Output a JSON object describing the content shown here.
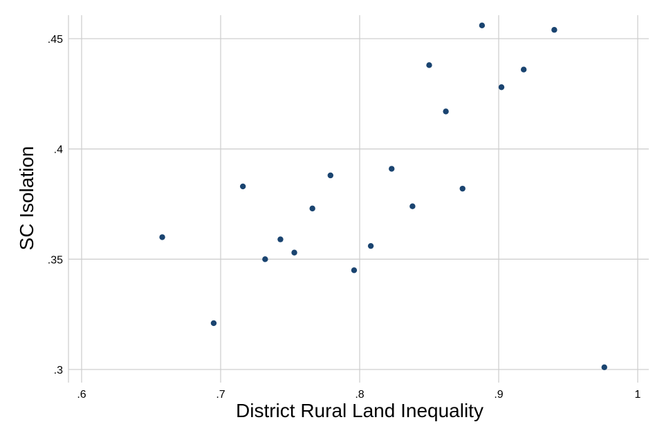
{
  "chart_data": {
    "type": "scatter",
    "title": "",
    "xlabel": "District Rural Land Inequality",
    "ylabel": "SC Isolation",
    "xlim": [
      0.6,
      1.0
    ],
    "ylim": [
      0.3,
      0.45
    ],
    "x_ticks": [
      0.6,
      0.7,
      0.8,
      0.9,
      1.0
    ],
    "x_tick_labels": [
      ".6",
      ".7",
      ".8",
      ".9",
      "1"
    ],
    "y_ticks": [
      0.3,
      0.35,
      0.4,
      0.45
    ],
    "y_tick_labels": [
      ".3",
      ".35",
      ".4",
      ".45"
    ],
    "grid": true,
    "marker_color": "#1a4470",
    "points": [
      {
        "x": 0.658,
        "y": 0.36
      },
      {
        "x": 0.695,
        "y": 0.321
      },
      {
        "x": 0.716,
        "y": 0.383
      },
      {
        "x": 0.732,
        "y": 0.35
      },
      {
        "x": 0.743,
        "y": 0.359
      },
      {
        "x": 0.753,
        "y": 0.353
      },
      {
        "x": 0.766,
        "y": 0.373
      },
      {
        "x": 0.779,
        "y": 0.388
      },
      {
        "x": 0.796,
        "y": 0.345
      },
      {
        "x": 0.808,
        "y": 0.356
      },
      {
        "x": 0.823,
        "y": 0.391
      },
      {
        "x": 0.838,
        "y": 0.374
      },
      {
        "x": 0.85,
        "y": 0.438
      },
      {
        "x": 0.862,
        "y": 0.417
      },
      {
        "x": 0.874,
        "y": 0.382
      },
      {
        "x": 0.888,
        "y": 0.456
      },
      {
        "x": 0.902,
        "y": 0.428
      },
      {
        "x": 0.918,
        "y": 0.436
      },
      {
        "x": 0.94,
        "y": 0.454
      },
      {
        "x": 0.976,
        "y": 0.301
      }
    ]
  }
}
